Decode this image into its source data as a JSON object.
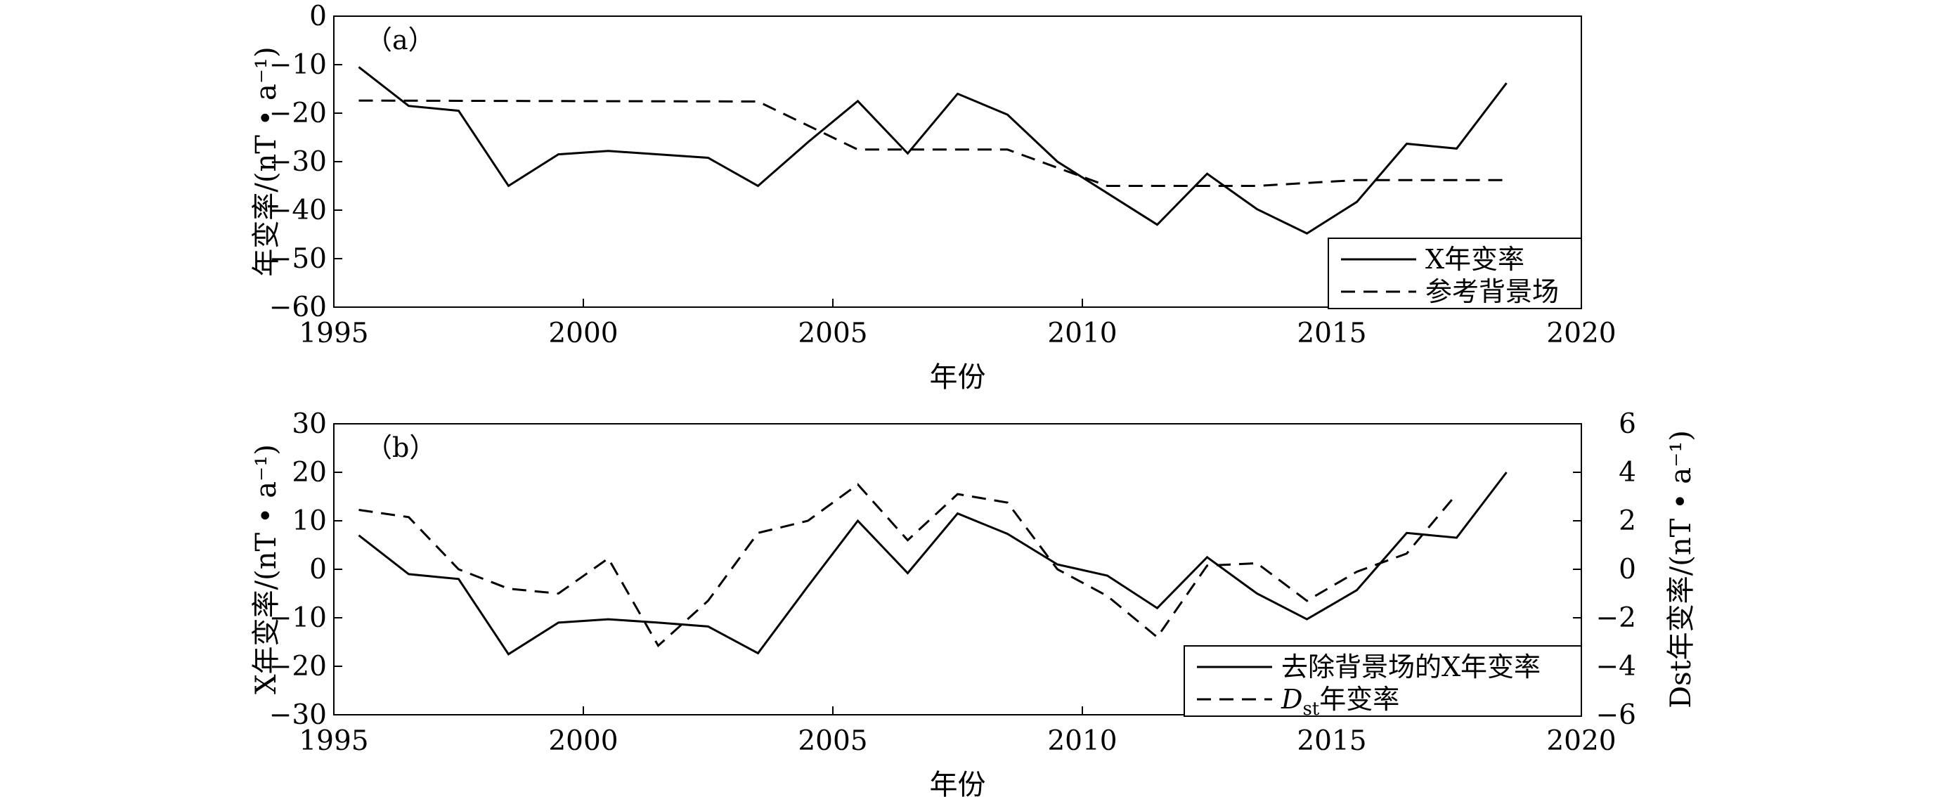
{
  "chart_data": [
    {
      "panel_label": "（a）",
      "type": "line",
      "xlabel": "年份",
      "ylabel": "年变率/(nT • a⁻¹)",
      "xlim": [
        1995,
        2020
      ],
      "ylim": [
        -60,
        0
      ],
      "xticks": [
        "1995",
        "2000",
        "2005",
        "2010",
        "2015",
        "2020"
      ],
      "yticks": [
        "0",
        "−10",
        "−20",
        "−30",
        "−40",
        "−50",
        "−60"
      ],
      "legend_position": "bottom-right",
      "series": [
        {
          "name": "X年变率",
          "style": "solid",
          "x": [
            1995.5,
            1996.5,
            1997.5,
            1998.5,
            1999.5,
            2000.5,
            2001.5,
            2002.5,
            2003.5,
            2004.5,
            2005.5,
            2006.5,
            2007.5,
            2008.5,
            2009.5,
            2010.5,
            2011.5,
            2012.5,
            2013.5,
            2014.5,
            2015.5,
            2016.5,
            2017.5,
            2018.5
          ],
          "values": [
            -10.5,
            -18.5,
            -19.5,
            -35,
            -28.5,
            -27.8,
            -28.5,
            -29.2,
            -35,
            -26,
            -17.5,
            -28.3,
            -16,
            -20.3,
            -30,
            -36.5,
            -43,
            -32.5,
            -39.8,
            -44.8,
            -38.3,
            -26.3,
            -27.3,
            -13.8
          ]
        },
        {
          "name": "参考背景场",
          "style": "dashed",
          "x": [
            1995.5,
            1999.5,
            2003.5,
            2005.5,
            2008.5,
            2010.5,
            2013.5,
            2015.5,
            2018.5
          ],
          "values": [
            -17.4,
            -17.5,
            -17.6,
            -27.5,
            -27.5,
            -35,
            -35,
            -33.8,
            -33.8
          ]
        }
      ]
    },
    {
      "panel_label": "（b）",
      "type": "line",
      "xlabel": "年份",
      "ylabel": "X年变率/(nT • a⁻¹)",
      "ylabel_right": "Dst年变率/(nT • a⁻¹)",
      "xlim": [
        1995,
        2020
      ],
      "ylim": [
        -30,
        30
      ],
      "ylim_right": [
        -6,
        6
      ],
      "xticks": [
        "1995",
        "2000",
        "2005",
        "2010",
        "2015",
        "2020"
      ],
      "yticks": [
        "30",
        "20",
        "10",
        "0",
        "−10",
        "−20",
        "−30"
      ],
      "yticks_right": [
        "6",
        "4",
        "2",
        "0",
        "−2",
        "−4",
        "−6"
      ],
      "legend_position": "bottom-right",
      "series": [
        {
          "name": "去除背景场的X年变率",
          "style": "solid",
          "axis": "left",
          "x": [
            1995.5,
            1996.5,
            1997.5,
            1998.5,
            1999.5,
            2000.5,
            2001.5,
            2002.5,
            2003.5,
            2004.5,
            2005.5,
            2006.5,
            2007.5,
            2008.5,
            2009.5,
            2010.5,
            2011.5,
            2012.5,
            2013.5,
            2014.5,
            2015.5,
            2016.5,
            2017.5,
            2018.5
          ],
          "values": [
            7,
            -1,
            -2,
            -17.5,
            -11,
            -10.3,
            -11,
            -11.8,
            -17.3,
            -3.5,
            10,
            -0.8,
            11.5,
            7.3,
            1,
            -1.3,
            -8,
            2.5,
            -5,
            -10.3,
            -4.3,
            7.5,
            6.5,
            20
          ]
        },
        {
          "name": "Dst年变率",
          "name_main": "D",
          "name_sub": "st",
          "name_rest": "年变率",
          "style": "dashed",
          "axis": "right",
          "x": [
            1995.5,
            1996.5,
            1997.5,
            1998.5,
            1999.5,
            2000.5,
            2001.5,
            2002.5,
            2003.5,
            2004.5,
            2005.5,
            2006.5,
            2007.5,
            2008.5,
            2009.5,
            2010.5,
            2011.5,
            2012.5,
            2013.5,
            2014.5,
            2015.5,
            2016.5,
            2017.5
          ],
          "values": [
            2.45,
            2.15,
            0,
            -0.8,
            -1,
            0.45,
            -3.15,
            -1.3,
            1.5,
            2,
            3.5,
            1.2,
            3.1,
            2.75,
            0,
            -1.1,
            -2.8,
            0.15,
            0.25,
            -1.3,
            -0.1,
            0.65,
            3.1
          ]
        }
      ]
    }
  ],
  "style": {
    "line_color": "#000000",
    "background": "#ffffff"
  }
}
